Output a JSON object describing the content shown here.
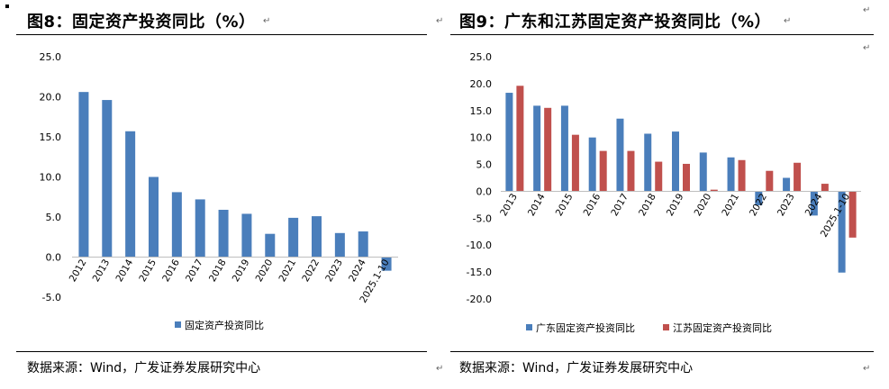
{
  "left": {
    "title": "图8：固定资产投资同比（%）",
    "source": "数据来源：Wind，广发证券发展研究中心"
  },
  "right": {
    "title": "图9：广东和江苏固定资产投资同比（%）",
    "source": "数据来源：Wind，广发证券发展研究中心"
  },
  "paragraph_mark": "↵",
  "colors": {
    "blue": "#4a7ebb",
    "red": "#c0504d"
  },
  "chart_data": [
    {
      "type": "bar",
      "categories": [
        "2012",
        "2013",
        "2014",
        "2015",
        "2016",
        "2017",
        "2018",
        "2019",
        "2020",
        "2021",
        "2022",
        "2023",
        "2024",
        "2025.1-10"
      ],
      "series": [
        {
          "name": "固定资产投资同比",
          "values": [
            20.6,
            19.6,
            15.7,
            10.0,
            8.1,
            7.2,
            5.9,
            5.4,
            2.9,
            4.9,
            5.1,
            3.0,
            3.2,
            -1.7
          ]
        }
      ],
      "ylim": [
        -5,
        25
      ],
      "yticks": [
        "25.0",
        "20.0",
        "15.0",
        "10.0",
        "5.0",
        "0.0",
        "-5.0"
      ],
      "legend": "bottom"
    },
    {
      "type": "bar",
      "categories": [
        "2013",
        "2014",
        "2015",
        "2016",
        "2017",
        "2018",
        "2019",
        "2020",
        "2021",
        "2022",
        "2023",
        "2024",
        "2025.1-10"
      ],
      "series": [
        {
          "name": "广东固定资产投资同比",
          "values": [
            18.3,
            15.9,
            15.9,
            10.0,
            13.5,
            10.7,
            11.1,
            7.2,
            6.3,
            -2.6,
            2.5,
            -4.5,
            -15.1
          ]
        },
        {
          "name": "江苏固定资产投资同比",
          "values": [
            19.6,
            15.5,
            10.5,
            7.5,
            7.5,
            5.5,
            5.1,
            0.3,
            5.8,
            3.8,
            5.3,
            1.4,
            -8.6
          ]
        }
      ],
      "ylim": [
        -20,
        25
      ],
      "yticks": [
        "25.0",
        "20.0",
        "15.0",
        "10.0",
        "5.0",
        "0.0",
        "-5.0",
        "-10.0",
        "-15.0",
        "-20.0"
      ],
      "legend": "bottom"
    }
  ]
}
